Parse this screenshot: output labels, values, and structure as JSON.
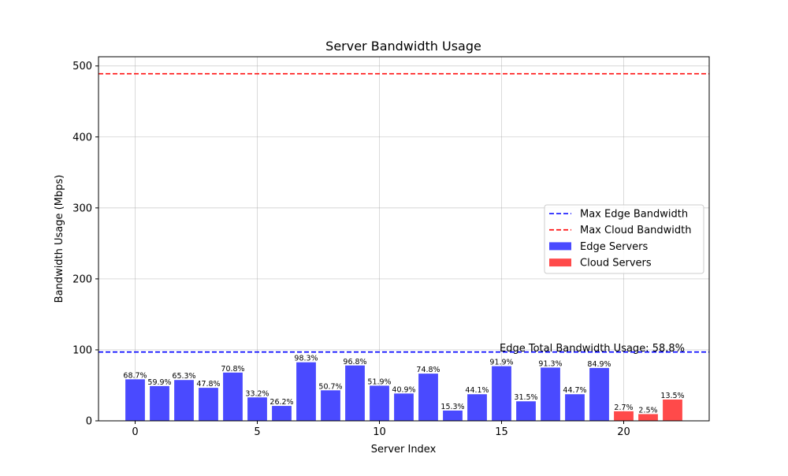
{
  "chart_data": {
    "type": "bar",
    "title": "Server Bandwidth Usage",
    "xlabel": "Server Index",
    "ylabel": "Bandwidth Usage (Mbps)",
    "xlim": [
      -1.5,
      23.5
    ],
    "ylim": [
      0,
      513
    ],
    "x_ticks": [
      0,
      5,
      10,
      15,
      20
    ],
    "y_ticks": [
      0,
      100,
      200,
      300,
      400,
      500
    ],
    "grid": true,
    "series": [
      {
        "name": "Edge Servers",
        "color": "#4a4aff",
        "x": [
          0,
          1,
          2,
          3,
          4,
          5,
          6,
          7,
          8,
          9,
          10,
          11,
          12,
          13,
          14,
          15,
          16,
          17,
          18,
          19
        ],
        "values": [
          58.5,
          49,
          57.5,
          46.5,
          68,
          33,
          21,
          82.5,
          43,
          78,
          49.5,
          38.5,
          66.5,
          14.5,
          37.5,
          77,
          27.5,
          75,
          37.5,
          74.5
        ],
        "labels": [
          "68.7%",
          "59.9%",
          "65.3%",
          "47.8%",
          "70.8%",
          "33.2%",
          "26.2%",
          "98.3%",
          "50.7%",
          "96.8%",
          "51.9%",
          "40.9%",
          "74.8%",
          "15.3%",
          "44.1%",
          "91.9%",
          "31.5%",
          "91.3%",
          "44.7%",
          "84.9%"
        ]
      },
      {
        "name": "Cloud Servers",
        "color": "#ff4a4a",
        "x": [
          20,
          21,
          22
        ],
        "values": [
          13.5,
          9.5,
          30
        ],
        "labels": [
          "2.7%",
          "2.5%",
          "13.5%"
        ]
      }
    ],
    "reference_lines": [
      {
        "name": "Max Edge Bandwidth",
        "value": 97,
        "color": "#0000ff"
      },
      {
        "name": "Max Cloud Bandwidth",
        "value": 489,
        "color": "#ff0000"
      }
    ],
    "annotation": "Edge Total Bandwidth Usage: 58.8%",
    "legend": {
      "position": "right",
      "entries": [
        {
          "label": "Max Edge Bandwidth",
          "kind": "dashed",
          "color": "#0000ff"
        },
        {
          "label": "Max Cloud Bandwidth",
          "kind": "dashed",
          "color": "#ff0000"
        },
        {
          "label": "Edge Servers",
          "kind": "patch",
          "color": "#4a4aff"
        },
        {
          "label": "Cloud Servers",
          "kind": "patch",
          "color": "#ff4a4a"
        }
      ]
    }
  }
}
